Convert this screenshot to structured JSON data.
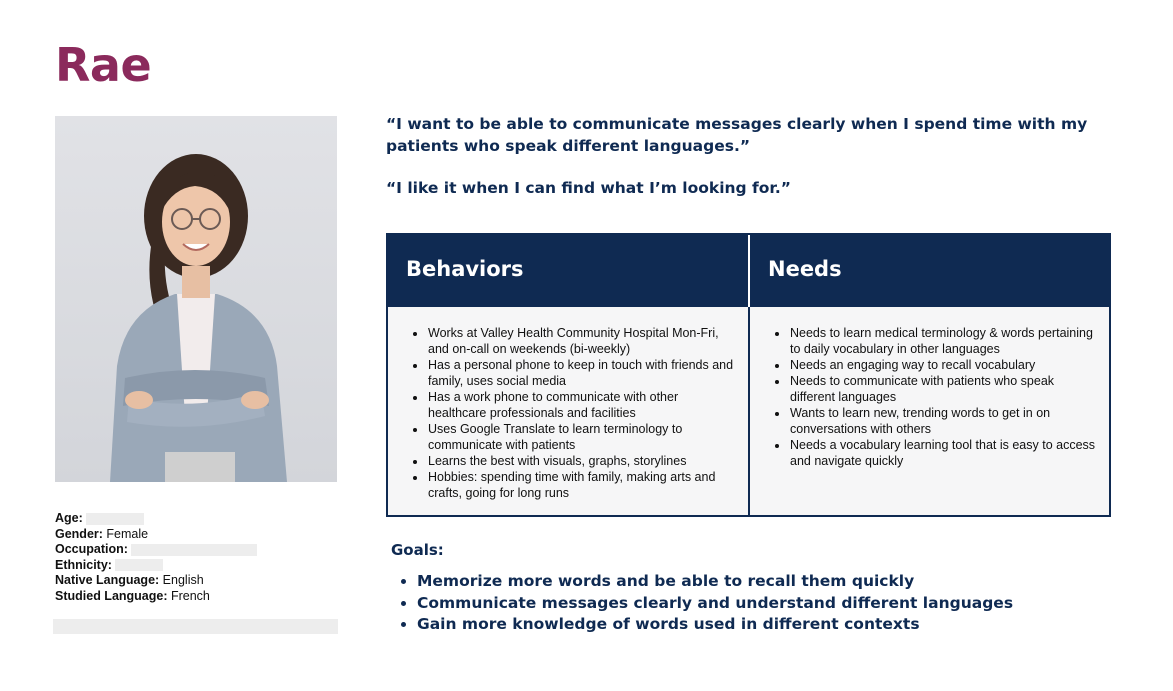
{
  "persona": {
    "name": "Rae",
    "photo_alt": "portrait-icon"
  },
  "demographics": {
    "age_label": "Age:",
    "age_value": "",
    "gender_label": "Gender:",
    "gender_value": "Female",
    "occupation_label": "Occupation:",
    "occupation_value": "",
    "ethnicity_label": "Ethnicity:",
    "ethnicity_value": "",
    "native_language_label": "Native Language:",
    "native_language_value": "English",
    "studied_language_label": "Studied Language:",
    "studied_language_value": "French"
  },
  "quotes": [
    "“I want to be able to communicate messages clearly when I spend time with my patients who speak different languages.”",
    "“I like it when I can find what I’m looking for.”"
  ],
  "behaviors": {
    "title": "Behaviors",
    "items": [
      "Works at Valley Health Community Hospital Mon-Fri, and on-call on weekends (bi-weekly)",
      "Has a personal phone to keep in touch with friends and family, uses social media",
      "Has a work phone to communicate with other healthcare professionals and facilities",
      "Uses Google Translate to learn terminology to communicate with patients",
      "Learns the best with visuals, graphs, storylines",
      "Hobbies: spending time with family, making arts and crafts, going for long runs"
    ]
  },
  "needs": {
    "title": "Needs",
    "items": [
      "Needs to learn medical terminology & words pertaining to daily vocabulary in other languages",
      "Needs an engaging way to recall vocabulary",
      "Needs to communicate with patients who speak different languages",
      "Wants to learn new, trending words to get in on conversations with others",
      "Needs a vocabulary learning tool that is easy to access and navigate quickly"
    ]
  },
  "goals": {
    "title": "Goals:",
    "items": [
      "Memorize more words and be able to recall them quickly",
      "Communicate messages clearly and understand different languages",
      "Gain more knowledge of words used in different contexts"
    ]
  },
  "colors": {
    "name": "#8b2a5c",
    "navy": "#0f2a52",
    "cell_bg": "#f6f6f7"
  }
}
